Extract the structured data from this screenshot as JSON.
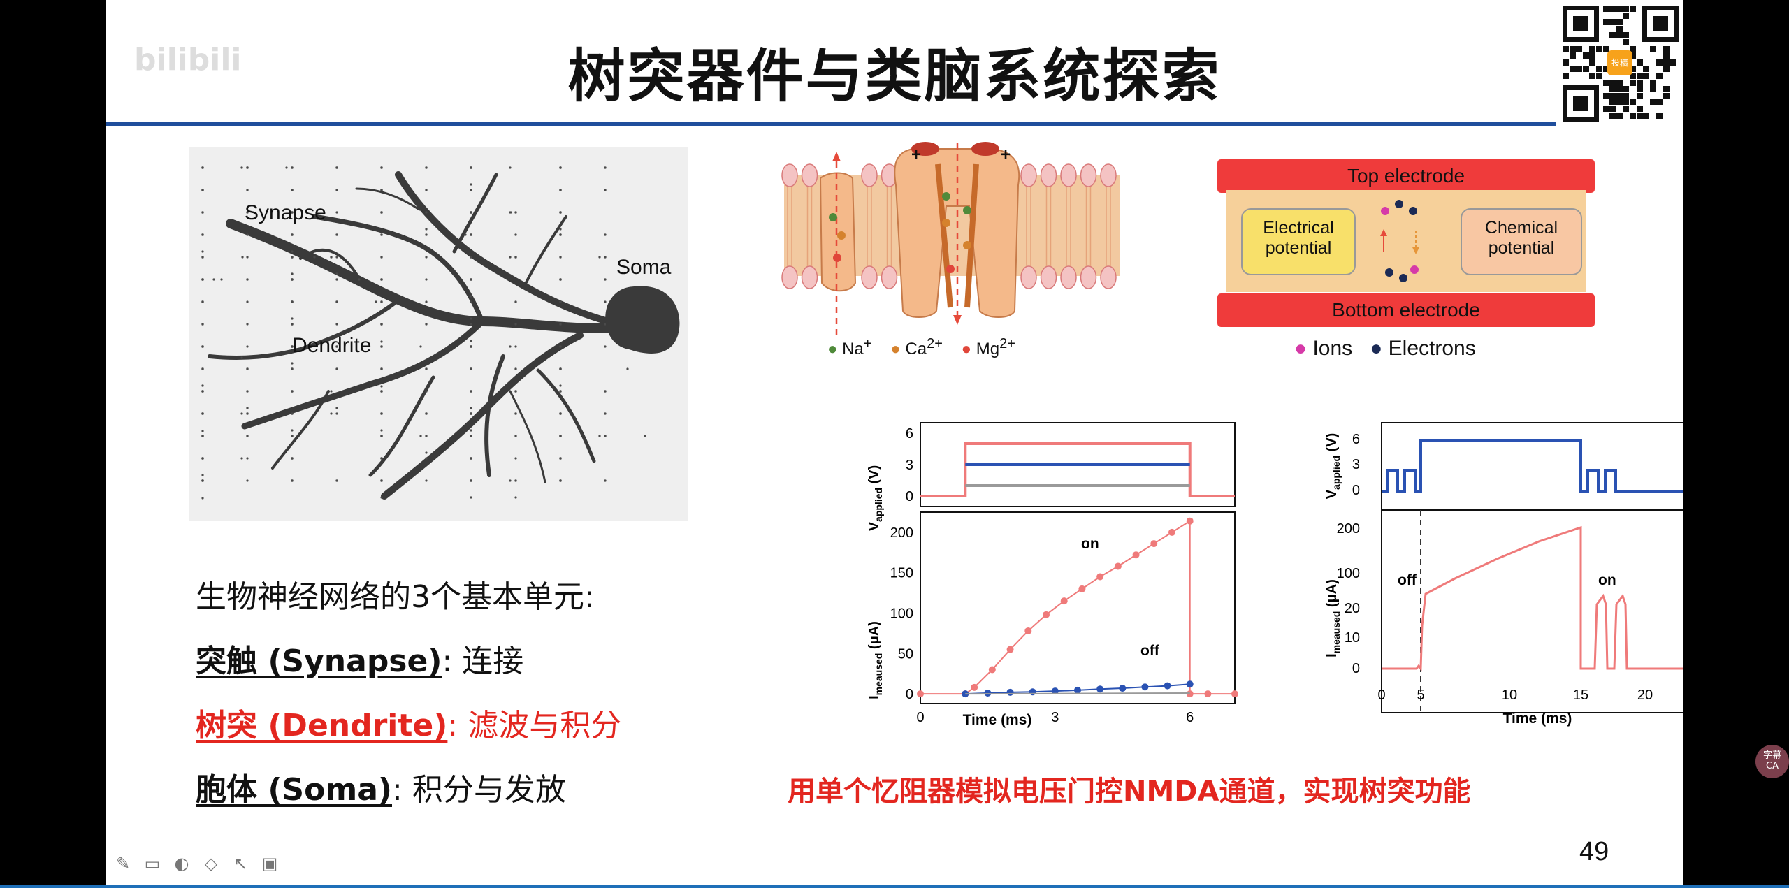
{
  "slide": {
    "title": "树突器件与类脑系统探索",
    "watermark": "bilibili",
    "qr_badge": "投稿",
    "page_number": "49"
  },
  "dendrite_figure": {
    "labels": {
      "synapse": "Synapse",
      "soma": "Soma",
      "dendrite": "Dendrite"
    }
  },
  "text_block": {
    "intro": "生物神经网络的3个基本单元:",
    "synapse_term": "突触 (Synapse)",
    "synapse_sep": ":",
    "synapse_desc": "连接",
    "dendrite_term": "树突 (Dendrite)",
    "dendrite_sep": ":",
    "dendrite_desc": "滤波与积分",
    "soma_term": "胞体 (Soma)",
    "soma_sep": ":",
    "soma_desc": "积分与发放"
  },
  "ion_figure": {
    "legend": [
      {
        "label": "Na",
        "sup": "+",
        "color": "#4f8a3a"
      },
      {
        "label": "Ca",
        "sup": "2+",
        "color": "#d5822d"
      },
      {
        "label": "Mg",
        "sup": "2+",
        "color": "#e0463a"
      }
    ],
    "plus_sign": "+"
  },
  "device_figure": {
    "top_electrode": "Top electrode",
    "bottom_electrode": "Bottom electrode",
    "electrical_potential_1": "Electrical",
    "electrical_potential_2": "potential",
    "chemical_potential_1": "Chemical",
    "chemical_potential_2": "potential",
    "legend_ions": "Ions",
    "legend_electrons": "Electrons",
    "ion_color": "#d63aa8",
    "electron_color": "#1b2a55"
  },
  "chart_data": [
    {
      "type": "line",
      "xlabel": "Time (ms)",
      "ylabel_top": "V",
      "ylabel_top_sub": "applied",
      "ylabel_top_unit": "(V)",
      "ylabel_bottom": "I",
      "ylabel_bottom_sub": "meaused",
      "ylabel_bottom_unit": "(μA)",
      "x_ticks": [
        0,
        3,
        6
      ],
      "xlim": [
        0,
        7
      ],
      "top_y_ticks": [
        0,
        3,
        6
      ],
      "top_ylim": [
        -1,
        7
      ],
      "bottom_y_ticks": [
        0,
        50,
        100,
        150,
        200
      ],
      "bottom_ylim": [
        -12,
        225
      ],
      "annotations": [
        "on",
        "off"
      ],
      "voltage_series": [
        {
          "color": "#ef7a7a",
          "x": [
            0,
            1,
            1,
            6,
            6,
            7
          ],
          "y": [
            0,
            0,
            5,
            5,
            0,
            0
          ]
        },
        {
          "color": "#2a52b3",
          "x": [
            1,
            6
          ],
          "y": [
            3,
            3
          ]
        },
        {
          "color": "#9a9a9a",
          "x": [
            1,
            6
          ],
          "y": [
            1,
            1
          ]
        }
      ],
      "current_series": [
        {
          "name": "on",
          "color": "#ef7a7a",
          "x": [
            0,
            1,
            1.2,
            1.6,
            2,
            2.4,
            2.8,
            3.2,
            3.6,
            4,
            4.4,
            4.8,
            5.2,
            5.6,
            6,
            6,
            6.4,
            7
          ],
          "y": [
            0,
            0,
            8,
            30,
            55,
            78,
            98,
            115,
            130,
            145,
            158,
            172,
            186,
            200,
            214,
            0,
            0,
            0
          ]
        },
        {
          "name": "off",
          "color": "#2a52b3",
          "x": [
            1,
            1.5,
            2,
            2.5,
            3,
            3.5,
            4,
            4.5,
            5,
            5.5,
            6
          ],
          "y": [
            0,
            1,
            2,
            2.5,
            3.5,
            4.5,
            6,
            7,
            8.5,
            10,
            12
          ]
        },
        {
          "color": "#9a9a9a",
          "x": [
            1,
            6
          ],
          "y": [
            0,
            1
          ]
        }
      ]
    },
    {
      "type": "line",
      "xlabel": "Time (ms)",
      "ylabel_top": "V",
      "ylabel_top_sub": "applied",
      "ylabel_top_unit": "(V)",
      "ylabel_bottom": "I",
      "ylabel_bottom_sub": "meaused",
      "ylabel_bottom_unit": "(μA)",
      "x_ticks": [
        0,
        5,
        10,
        15,
        20
      ],
      "x_tick_labels": [
        "0",
        "5",
        "10",
        "15",
        "20"
      ],
      "top_y_ticks": [
        0,
        3,
        6
      ],
      "bottom_y_tick_labels": [
        "0",
        "10",
        "20",
        "100",
        "200"
      ],
      "annotations": [
        "off",
        "on"
      ],
      "voltage_series": [
        {
          "color": "#2a52b3",
          "note": "pulse train then 5 V plateau then pulse train"
        }
      ],
      "current_series": [
        {
          "color": "#ef7a7a",
          "note": "off phase near 0, rises to ~200 during plateau, on-phase spikes ~22"
        }
      ]
    }
  ],
  "caption": "用单个忆阻器模拟电压门控NMDA通道，实现树突功能",
  "toolbar": {
    "icons": [
      "pen-icon",
      "window-icon",
      "palette-icon",
      "eraser-icon",
      "pointer-icon",
      "image-icon"
    ],
    "glyphs": [
      "✎",
      "▭",
      "◐",
      "◇",
      "↖",
      "▣"
    ]
  },
  "side_badge": "字幕 CA"
}
